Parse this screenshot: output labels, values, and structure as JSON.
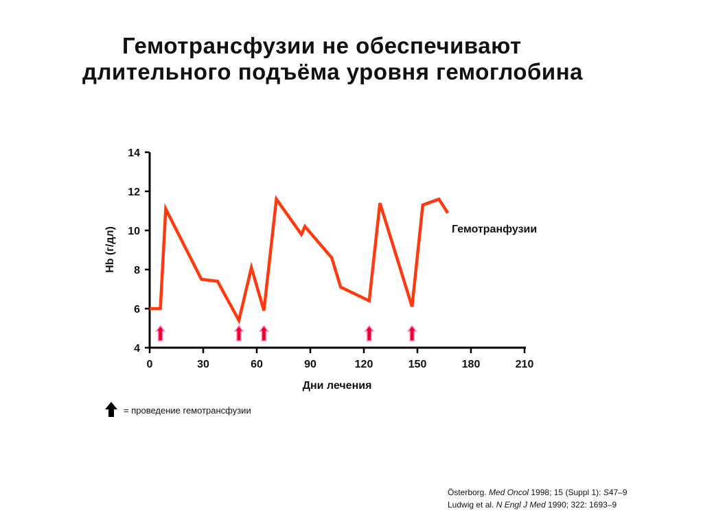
{
  "title_line1": "Гемотрансфузии не обеспечивают",
  "title_line2": "длительного подъёма уровня гемоглобина",
  "legend": {
    "icon": "arrow-up-icon",
    "text": "= проведение гемотрансфузии"
  },
  "citations": [
    [
      {
        "t": "Österborg. ",
        "i": false
      },
      {
        "t": "Med Oncol",
        "i": true
      },
      {
        "t": " 1998; 15 (Suppl 1): ",
        "i": false
      },
      {
        "t": "S",
        "i": true
      },
      {
        "t": "47–9",
        "i": false
      }
    ],
    [
      {
        "t": "Ludwig et al. ",
        "i": false
      },
      {
        "t": "N Engl J Med",
        "i": true
      },
      {
        "t": " 1990; 322: 1693–9",
        "i": false
      }
    ]
  ],
  "colors": {
    "line": "#ff3a10",
    "arrow_fill": "#e8002a",
    "arrow_outline": "#ff88cc",
    "axis": "#000000"
  },
  "chart_data": {
    "type": "line",
    "xlabel": "Дни лечения",
    "ylabel": "Hb (г/дл)",
    "xlim": [
      0,
      210
    ],
    "ylim": [
      4,
      14
    ],
    "xticks": [
      0,
      30,
      60,
      90,
      120,
      150,
      180,
      210
    ],
    "yticks": [
      4,
      6,
      8,
      10,
      12,
      14
    ],
    "grid": false,
    "series": [
      {
        "name": "Гемотранфузии",
        "x": [
          0,
          6,
          9,
          29,
          38,
          50,
          57,
          64,
          71,
          85,
          87,
          102,
          107,
          123,
          129,
          147,
          153,
          162,
          167
        ],
        "y": [
          6.0,
          6.0,
          11.1,
          7.5,
          7.4,
          5.4,
          8.1,
          5.9,
          11.6,
          9.8,
          10.2,
          8.6,
          7.1,
          6.4,
          11.4,
          6.1,
          11.3,
          11.6,
          10.9
        ]
      }
    ],
    "transfusion_days": [
      6,
      50,
      64,
      123,
      147
    ]
  }
}
